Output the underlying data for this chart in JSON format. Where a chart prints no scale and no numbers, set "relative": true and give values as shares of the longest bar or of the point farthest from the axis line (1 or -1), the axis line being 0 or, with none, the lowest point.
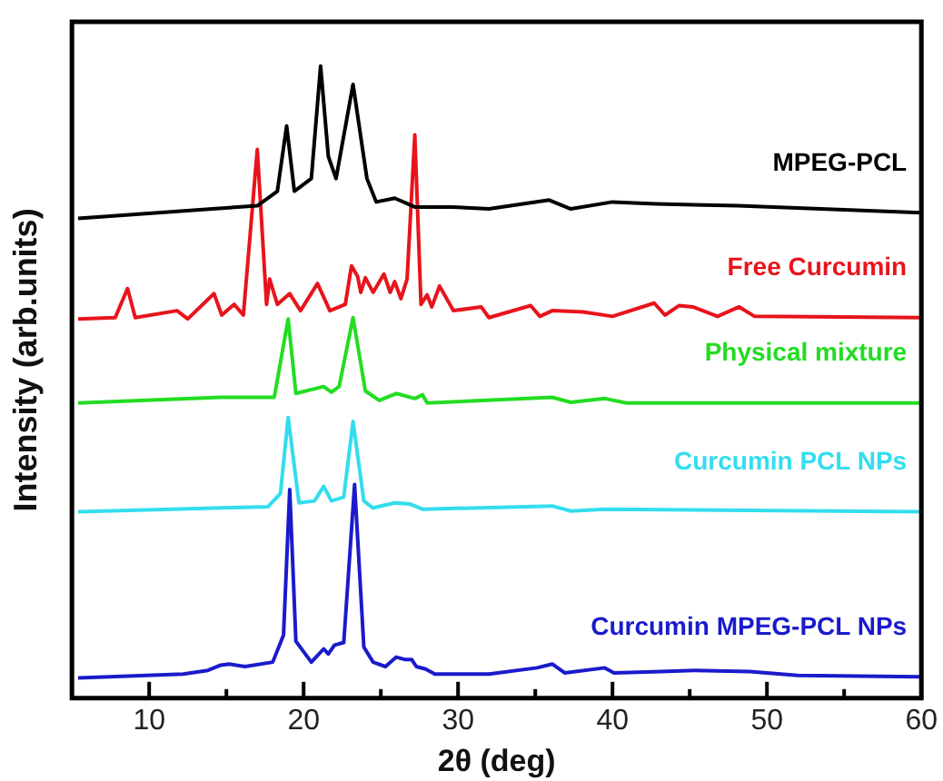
{
  "chart_data": {
    "type": "line",
    "relative": true,
    "xlabel": "2θ (deg)",
    "ylabel": "Intensity (arb.units)",
    "xlim": [
      5,
      60
    ],
    "xticks": [
      10,
      {
        "value": 15,
        "label": null
      },
      20,
      {
        "value": 25,
        "label": null
      },
      30,
      {
        "value": 35,
        "label": null
      },
      40,
      {
        "value": 45,
        "label": null
      },
      50,
      {
        "value": 55,
        "label": null
      },
      60
    ],
    "grid": false,
    "legend": false,
    "marker": "none",
    "line_style": "solid",
    "series": [
      {
        "name": "MPEG-PCL",
        "color": "#000000",
        "x": [
          5.4,
          14.1,
          17.0,
          18.3,
          18.9,
          19.4,
          20.5,
          21.1,
          21.6,
          22.1,
          23.2,
          24.1,
          24.7,
          25.9,
          27.2,
          29.6,
          32.0,
          35.9,
          37.3,
          40.0,
          42.8,
          48.1,
          60
        ],
        "values": [
          0.759,
          0.774,
          0.779,
          0.802,
          0.905,
          0.802,
          0.822,
          1,
          0.857,
          0.822,
          0.971,
          0.822,
          0.785,
          0.791,
          0.777,
          0.777,
          0.774,
          0.788,
          0.774,
          0.785,
          0.782,
          0.779,
          0.768
        ]
      },
      {
        "name": "Free Curcumin",
        "color": "#e8141c",
        "x": [
          5.4,
          7.8,
          8.6,
          9.1,
          11.8,
          12.5,
          14.2,
          14.7,
          15.5,
          16.1,
          17.0,
          17.6,
          17.8,
          18.3,
          19.1,
          19.8,
          20.9,
          21.7,
          22.7,
          23.1,
          23.5,
          23.7,
          24.0,
          24.5,
          25.2,
          25.6,
          25.9,
          26.3,
          26.7,
          27.2,
          27.6,
          28.0,
          28.3,
          28.8,
          29.7,
          31.5,
          32.0,
          34.7,
          35.3,
          36.1,
          38.1,
          40.0,
          42.7,
          43.4,
          44.3,
          45.2,
          46.8,
          48.2,
          49.2,
          60
        ],
        "values": [
          0.6,
          0.602,
          0.648,
          0.602,
          0.613,
          0.6,
          0.64,
          0.606,
          0.623,
          0.606,
          0.868,
          0.623,
          0.663,
          0.623,
          0.64,
          0.613,
          0.656,
          0.613,
          0.623,
          0.684,
          0.667,
          0.642,
          0.665,
          0.642,
          0.671,
          0.642,
          0.659,
          0.632,
          0.663,
          0.891,
          0.623,
          0.638,
          0.619,
          0.652,
          0.613,
          0.619,
          0.602,
          0.621,
          0.604,
          0.613,
          0.611,
          0.604,
          0.625,
          0.606,
          0.621,
          0.619,
          0.604,
          0.619,
          0.604,
          0.602
        ]
      },
      {
        "name": "Physical mixture",
        "color": "#22dd22",
        "x": [
          5.4,
          14.6,
          18.1,
          19.0,
          19.5,
          21.3,
          21.8,
          22.3,
          23.2,
          24.0,
          24.9,
          26.0,
          27.2,
          27.7,
          28.0,
          36.1,
          37.3,
          39.5,
          40.9,
          60
        ],
        "values": [
          0.467,
          0.476,
          0.476,
          0.6,
          0.482,
          0.493,
          0.484,
          0.493,
          0.602,
          0.486,
          0.471,
          0.482,
          0.474,
          0.48,
          0.467,
          0.476,
          0.468,
          0.474,
          0.467,
          0.467
        ]
      },
      {
        "name": "Curcumin PCL NPs",
        "color": "#33ddee",
        "x": [
          5.4,
          14.7,
          17.7,
          18.5,
          19.0,
          19.7,
          20.7,
          21.3,
          21.8,
          22.6,
          23.2,
          23.9,
          24.5,
          25.9,
          26.9,
          27.7,
          36.1,
          37.3,
          39.5,
          60
        ],
        "values": [
          0.295,
          0.301,
          0.303,
          0.324,
          0.444,
          0.309,
          0.312,
          0.335,
          0.312,
          0.318,
          0.438,
          0.312,
          0.301,
          0.309,
          0.307,
          0.299,
          0.304,
          0.296,
          0.299,
          0.295
        ]
      },
      {
        "name": "Curcumin MPEG-PCL NPs",
        "color": "#1a1acc",
        "x": [
          5.4,
          12.2,
          13.8,
          14.6,
          15.2,
          16.2,
          18.0,
          18.7,
          19.1,
          19.5,
          20.5,
          21.3,
          21.6,
          22.0,
          22.6,
          23.3,
          23.9,
          24.5,
          25.3,
          26.0,
          26.6,
          27.0,
          27.3,
          27.9,
          28.5,
          32.0,
          35.1,
          36.1,
          36.9,
          39.5,
          40.1,
          43.1,
          45.3,
          48.9,
          52.0,
          60
        ],
        "values": [
          0.032,
          0.038,
          0.044,
          0.052,
          0.054,
          0.05,
          0.057,
          0.1,
          0.33,
          0.09,
          0.057,
          0.078,
          0.07,
          0.084,
          0.088,
          0.338,
          0.081,
          0.057,
          0.05,
          0.065,
          0.061,
          0.061,
          0.05,
          0.046,
          0.038,
          0.038,
          0.048,
          0.054,
          0.04,
          0.048,
          0.04,
          0.042,
          0.044,
          0.042,
          0.036,
          0.034
        ]
      }
    ]
  }
}
